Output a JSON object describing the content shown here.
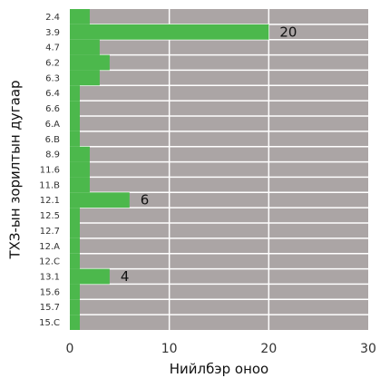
{
  "chart_data": {
    "type": "bar",
    "orientation": "horizontal",
    "categories": [
      "2.4",
      "3.9",
      "4.7",
      "6.2",
      "6.3",
      "6.4",
      "6.6",
      "6.A",
      "6.B",
      "8.9",
      "11.6",
      "11.B",
      "12.1",
      "12.5",
      "12.7",
      "12.A",
      "12.C",
      "13.1",
      "15.6",
      "15.7",
      "15.C"
    ],
    "values": [
      2,
      20,
      3,
      4,
      3,
      1,
      1,
      1,
      1,
      2,
      2,
      2,
      6,
      1,
      1,
      1,
      1,
      4,
      1,
      1,
      1
    ],
    "data_labels": [
      {
        "category": "3.9",
        "text": "20"
      },
      {
        "category": "12.1",
        "text": "6"
      },
      {
        "category": "13.1",
        "text": "4"
      }
    ],
    "xlabel": "Нийлбэр оноо",
    "ylabel": "ТХЗ-ын зорилтын дугаар",
    "xlim": [
      0,
      30
    ],
    "xticks": [
      0,
      10,
      20,
      30
    ],
    "grid": true,
    "colors": {
      "bar": "#4cb84c",
      "background": "#aba5a5",
      "grid": "#ffffff"
    }
  }
}
